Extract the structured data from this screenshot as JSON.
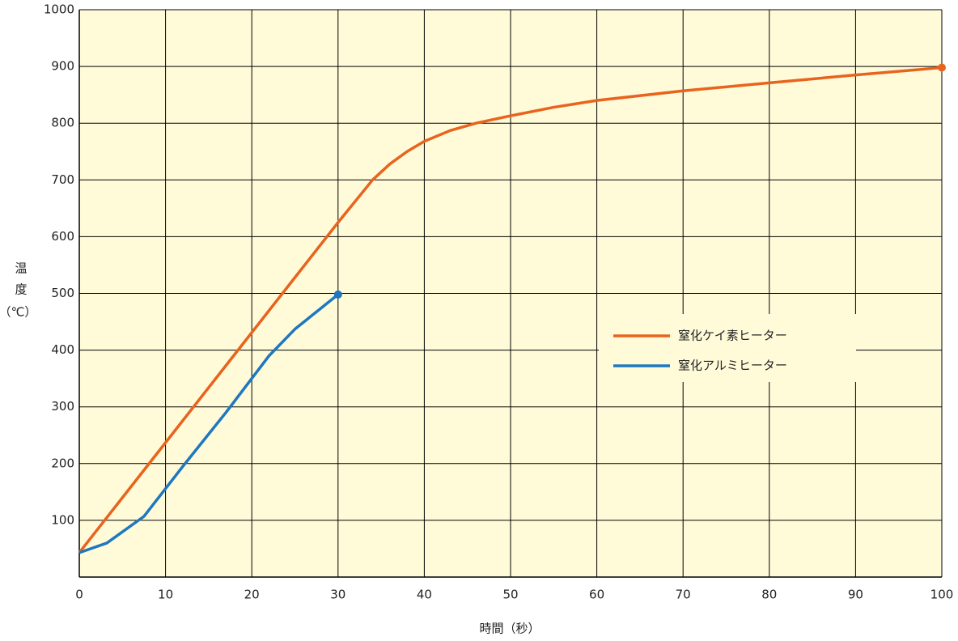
{
  "chart_data": {
    "type": "line",
    "xlabel": "時間（秒）",
    "ylabel": [
      "温",
      "度",
      "（℃）"
    ],
    "xlim": [
      0,
      100
    ],
    "xticks": [
      0,
      10,
      20,
      30,
      40,
      50,
      60,
      70,
      80,
      90,
      100
    ],
    "ylim": [
      0,
      1000
    ],
    "yticks": [
      100,
      200,
      300,
      400,
      500,
      600,
      700,
      800,
      900,
      1000
    ],
    "grid": true,
    "background": "#fffbd9",
    "legend": "right",
    "series": [
      {
        "name": "窒化ケイ素ヒーター",
        "color": "#e8641e",
        "x": [
          0,
          5,
          10,
          15,
          20,
          25,
          30,
          34,
          36,
          38,
          40,
          43,
          46,
          50,
          55,
          60,
          70,
          80,
          90,
          100
        ],
        "values": [
          43,
          140,
          237,
          334,
          431,
          528,
          625,
          700,
          728,
          750,
          768,
          787,
          800,
          813,
          828,
          840,
          857,
          871,
          885,
          898
        ]
      },
      {
        "name": "窒化アルミヒーター",
        "color": "#1f77c0",
        "x": [
          0,
          3.2,
          7.5,
          12,
          17,
          22,
          25,
          30
        ],
        "values": [
          43,
          60,
          107,
          195,
          290,
          390,
          437,
          498
        ]
      }
    ]
  }
}
